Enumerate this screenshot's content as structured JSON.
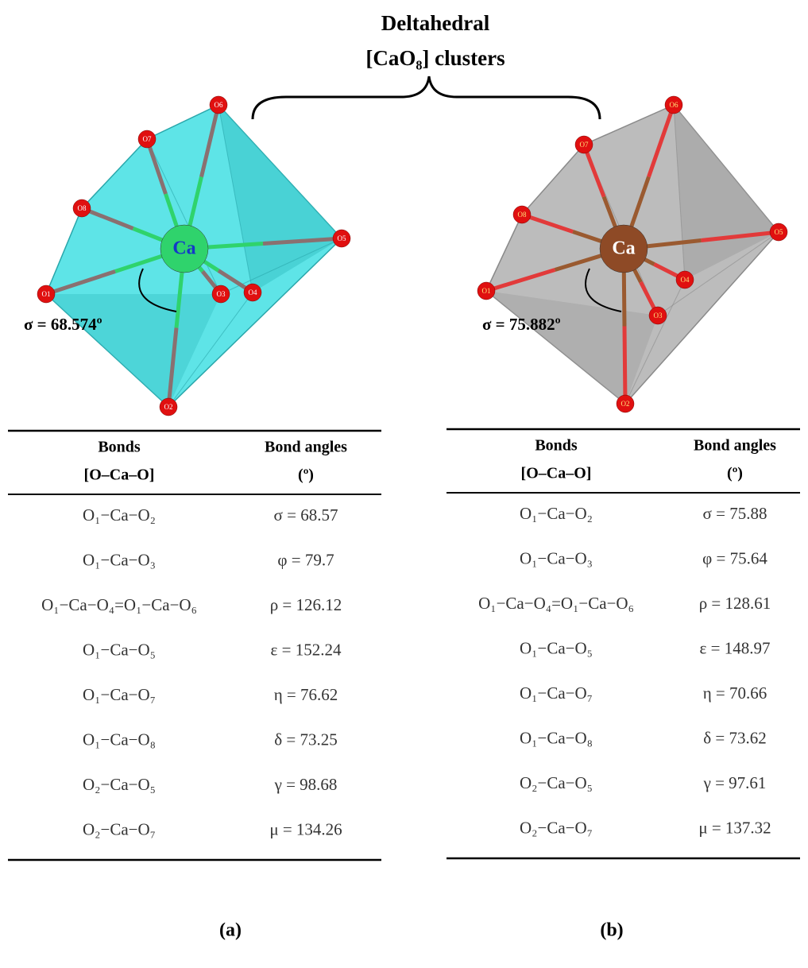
{
  "title": {
    "line1": "Deltahedral",
    "line2": "[CaO₈] clusters"
  },
  "panels": [
    {
      "label": "(a)",
      "molecule": {
        "center": "Ca",
        "atoms": [
          "O1",
          "O2",
          "O3",
          "O4",
          "O5",
          "O6",
          "O7",
          "O8"
        ],
        "angle_annotation": "σ = 68.574º"
      },
      "table": {
        "headers": [
          [
            "Bonds",
            "[O–Ca–O]"
          ],
          [
            "Bond angles",
            "(º)"
          ]
        ],
        "rows": [
          [
            "O₁−Ca−O₂",
            "σ = 68.57"
          ],
          [
            "O₁−Ca−O₃",
            "φ = 79.7"
          ],
          [
            "O₁−Ca−O₄=O₁−Ca−O₆",
            "ρ = 126.12"
          ],
          [
            "O₁−Ca−O₅",
            "ε = 152.24"
          ],
          [
            "O₁−Ca−O₇",
            "η = 76.62"
          ],
          [
            "O₁−Ca−O₈",
            "δ = 73.25"
          ],
          [
            "O₂−Ca−O₅",
            "γ = 98.68"
          ],
          [
            "O₂−Ca−O₇",
            "μ = 134.26"
          ]
        ]
      }
    },
    {
      "label": "(b)",
      "molecule": {
        "center": "Ca",
        "atoms": [
          "O1",
          "O2",
          "O3",
          "O4",
          "O5",
          "O6",
          "O7",
          "O8"
        ],
        "angle_annotation": "σ = 75.882º"
      },
      "table": {
        "headers": [
          [
            "Bonds",
            "[O–Ca–O]"
          ],
          [
            "Bond angles",
            "(º)"
          ]
        ],
        "rows": [
          [
            "O₁−Ca−O₂",
            "σ = 75.88"
          ],
          [
            "O₁−Ca−O₃",
            "φ = 75.64"
          ],
          [
            "O₁−Ca−O₄=O₁−Ca−O₆",
            "ρ = 128.61"
          ],
          [
            "O₁−Ca−O₅",
            "ε = 148.97"
          ],
          [
            "O₁−Ca−O₇",
            "η = 70.66"
          ],
          [
            "O₁−Ca−O₈",
            "δ = 73.62"
          ],
          [
            "O₂−Ca−O₅",
            "γ = 97.61"
          ],
          [
            "O₂−Ca−O₇",
            "μ = 137.32"
          ]
        ]
      }
    }
  ]
}
